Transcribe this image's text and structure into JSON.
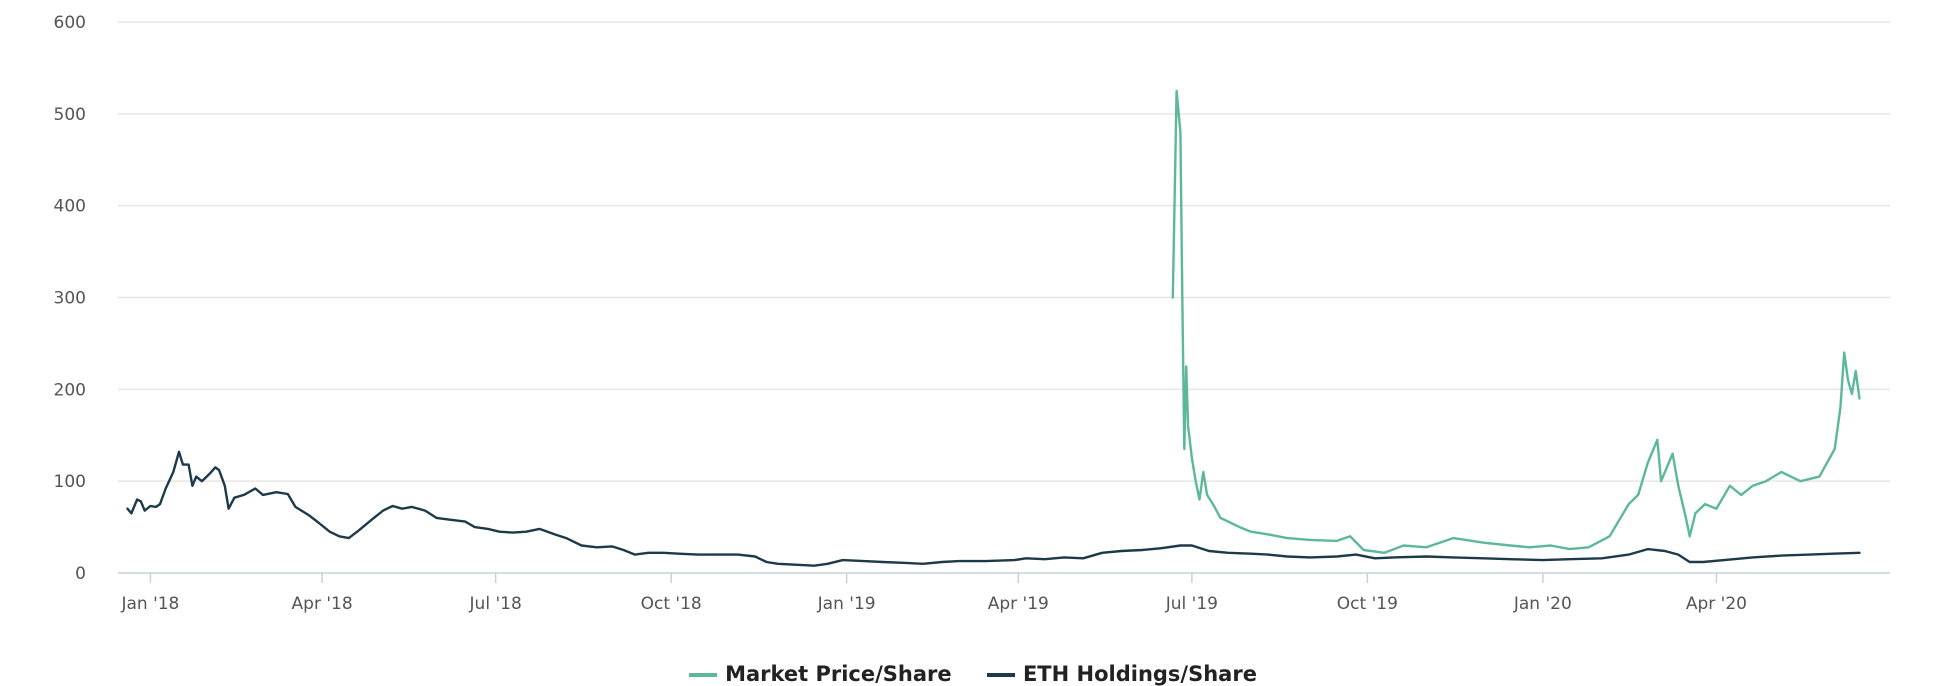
{
  "chart_data": {
    "type": "line",
    "title": "",
    "xlabel": "",
    "ylabel": "",
    "ylim": [
      0,
      600
    ],
    "xlim": [
      "2017-12-15",
      "2020-07-01"
    ],
    "grid": true,
    "legend_position": "bottom-center",
    "y_ticks": [
      "0",
      "100",
      "200",
      "300",
      "400",
      "500",
      "600"
    ],
    "x_ticks": [
      {
        "date": "2018-01-01",
        "label": "Jan '18"
      },
      {
        "date": "2018-04-01",
        "label": "Apr '18"
      },
      {
        "date": "2018-07-01",
        "label": "Jul '18"
      },
      {
        "date": "2018-10-01",
        "label": "Oct '18"
      },
      {
        "date": "2019-01-01",
        "label": "Jan '19"
      },
      {
        "date": "2019-04-01",
        "label": "Apr '19"
      },
      {
        "date": "2019-07-01",
        "label": "Jul '19"
      },
      {
        "date": "2019-10-01",
        "label": "Oct '19"
      },
      {
        "date": "2020-01-01",
        "label": "Jan '20"
      },
      {
        "date": "2020-04-01",
        "label": "Apr '20"
      }
    ],
    "series": [
      {
        "name": "Market Price/Share",
        "color": "#5bb89a",
        "points": [
          [
            "2019-06-21",
            300
          ],
          [
            "2019-06-23",
            525
          ],
          [
            "2019-06-25",
            480
          ],
          [
            "2019-06-26",
            300
          ],
          [
            "2019-06-27",
            135
          ],
          [
            "2019-06-28",
            225
          ],
          [
            "2019-06-29",
            160
          ],
          [
            "2019-07-01",
            125
          ],
          [
            "2019-07-03",
            100
          ],
          [
            "2019-07-05",
            80
          ],
          [
            "2019-07-07",
            110
          ],
          [
            "2019-07-09",
            85
          ],
          [
            "2019-07-12",
            75
          ],
          [
            "2019-07-16",
            60
          ],
          [
            "2019-07-21",
            55
          ],
          [
            "2019-07-26",
            50
          ],
          [
            "2019-08-01",
            45
          ],
          [
            "2019-08-10",
            42
          ],
          [
            "2019-08-20",
            38
          ],
          [
            "2019-09-01",
            36
          ],
          [
            "2019-09-15",
            35
          ],
          [
            "2019-09-22",
            40
          ],
          [
            "2019-09-29",
            25
          ],
          [
            "2019-10-10",
            22
          ],
          [
            "2019-10-20",
            30
          ],
          [
            "2019-11-01",
            28
          ],
          [
            "2019-11-15",
            38
          ],
          [
            "2019-12-01",
            33
          ],
          [
            "2019-12-15",
            30
          ],
          [
            "2019-12-25",
            28
          ],
          [
            "2020-01-05",
            30
          ],
          [
            "2020-01-15",
            26
          ],
          [
            "2020-01-25",
            28
          ],
          [
            "2020-02-05",
            40
          ],
          [
            "2020-02-15",
            75
          ],
          [
            "2020-02-20",
            85
          ],
          [
            "2020-02-25",
            120
          ],
          [
            "2020-03-01",
            145
          ],
          [
            "2020-03-03",
            100
          ],
          [
            "2020-03-06",
            115
          ],
          [
            "2020-03-09",
            130
          ],
          [
            "2020-03-12",
            95
          ],
          [
            "2020-03-16",
            60
          ],
          [
            "2020-03-18",
            40
          ],
          [
            "2020-03-21",
            65
          ],
          [
            "2020-03-26",
            75
          ],
          [
            "2020-04-01",
            70
          ],
          [
            "2020-04-08",
            95
          ],
          [
            "2020-04-14",
            85
          ],
          [
            "2020-04-20",
            95
          ],
          [
            "2020-04-27",
            100
          ],
          [
            "2020-05-05",
            110
          ],
          [
            "2020-05-15",
            100
          ],
          [
            "2020-05-25",
            105
          ],
          [
            "2020-06-02",
            135
          ],
          [
            "2020-06-05",
            180
          ],
          [
            "2020-06-07",
            240
          ],
          [
            "2020-06-09",
            210
          ],
          [
            "2020-06-11",
            195
          ],
          [
            "2020-06-13",
            220
          ],
          [
            "2020-06-15",
            190
          ]
        ]
      },
      {
        "name": "ETH Holdings/Share",
        "color": "#1c3a4a",
        "points": [
          [
            "2017-12-20",
            70
          ],
          [
            "2017-12-22",
            65
          ],
          [
            "2017-12-25",
            80
          ],
          [
            "2017-12-27",
            78
          ],
          [
            "2017-12-29",
            68
          ],
          [
            "2018-01-01",
            73
          ],
          [
            "2018-01-04",
            72
          ],
          [
            "2018-01-06",
            75
          ],
          [
            "2018-01-09",
            92
          ],
          [
            "2018-01-13",
            110
          ],
          [
            "2018-01-16",
            132
          ],
          [
            "2018-01-18",
            118
          ],
          [
            "2018-01-21",
            118
          ],
          [
            "2018-01-23",
            95
          ],
          [
            "2018-01-25",
            105
          ],
          [
            "2018-01-28",
            100
          ],
          [
            "2018-02-01",
            108
          ],
          [
            "2018-02-04",
            115
          ],
          [
            "2018-02-06",
            112
          ],
          [
            "2018-02-09",
            95
          ],
          [
            "2018-02-11",
            70
          ],
          [
            "2018-02-14",
            82
          ],
          [
            "2018-02-19",
            85
          ],
          [
            "2018-02-25",
            92
          ],
          [
            "2018-03-01",
            85
          ],
          [
            "2018-03-08",
            88
          ],
          [
            "2018-03-14",
            86
          ],
          [
            "2018-03-18",
            72
          ],
          [
            "2018-03-25",
            63
          ],
          [
            "2018-03-30",
            55
          ],
          [
            "2018-04-05",
            45
          ],
          [
            "2018-04-10",
            40
          ],
          [
            "2018-04-15",
            38
          ],
          [
            "2018-04-20",
            46
          ],
          [
            "2018-04-27",
            58
          ],
          [
            "2018-05-03",
            68
          ],
          [
            "2018-05-08",
            73
          ],
          [
            "2018-05-13",
            70
          ],
          [
            "2018-05-18",
            72
          ],
          [
            "2018-05-25",
            68
          ],
          [
            "2018-05-31",
            60
          ],
          [
            "2018-06-07",
            58
          ],
          [
            "2018-06-15",
            56
          ],
          [
            "2018-06-20",
            50
          ],
          [
            "2018-06-27",
            48
          ],
          [
            "2018-07-03",
            45
          ],
          [
            "2018-07-10",
            44
          ],
          [
            "2018-07-17",
            45
          ],
          [
            "2018-07-24",
            48
          ],
          [
            "2018-08-01",
            42
          ],
          [
            "2018-08-07",
            38
          ],
          [
            "2018-08-15",
            30
          ],
          [
            "2018-08-23",
            28
          ],
          [
            "2018-08-31",
            29
          ],
          [
            "2018-09-06",
            25
          ],
          [
            "2018-09-12",
            20
          ],
          [
            "2018-09-19",
            22
          ],
          [
            "2018-09-27",
            22
          ],
          [
            "2018-10-05",
            21
          ],
          [
            "2018-10-15",
            20
          ],
          [
            "2018-10-25",
            20
          ],
          [
            "2018-11-05",
            20
          ],
          [
            "2018-11-14",
            18
          ],
          [
            "2018-11-20",
            12
          ],
          [
            "2018-11-26",
            10
          ],
          [
            "2018-12-05",
            9
          ],
          [
            "2018-12-15",
            8
          ],
          [
            "2018-12-22",
            10
          ],
          [
            "2018-12-30",
            14
          ],
          [
            "2019-01-10",
            13
          ],
          [
            "2019-01-20",
            12
          ],
          [
            "2019-02-01",
            11
          ],
          [
            "2019-02-10",
            10
          ],
          [
            "2019-02-20",
            12
          ],
          [
            "2019-03-01",
            13
          ],
          [
            "2019-03-15",
            13
          ],
          [
            "2019-03-30",
            14
          ],
          [
            "2019-04-05",
            16
          ],
          [
            "2019-04-15",
            15
          ],
          [
            "2019-04-25",
            17
          ],
          [
            "2019-05-05",
            16
          ],
          [
            "2019-05-15",
            22
          ],
          [
            "2019-05-25",
            24
          ],
          [
            "2019-06-05",
            25
          ],
          [
            "2019-06-15",
            27
          ],
          [
            "2019-06-25",
            30
          ],
          [
            "2019-07-01",
            30
          ],
          [
            "2019-07-10",
            24
          ],
          [
            "2019-07-20",
            22
          ],
          [
            "2019-08-01",
            21
          ],
          [
            "2019-08-10",
            20
          ],
          [
            "2019-08-20",
            18
          ],
          [
            "2019-09-01",
            17
          ],
          [
            "2019-09-15",
            18
          ],
          [
            "2019-09-25",
            20
          ],
          [
            "2019-10-05",
            16
          ],
          [
            "2019-10-15",
            17
          ],
          [
            "2019-11-01",
            18
          ],
          [
            "2019-11-15",
            17
          ],
          [
            "2019-12-01",
            16
          ],
          [
            "2019-12-15",
            15
          ],
          [
            "2020-01-01",
            14
          ],
          [
            "2020-01-15",
            15
          ],
          [
            "2020-02-01",
            16
          ],
          [
            "2020-02-15",
            20
          ],
          [
            "2020-02-25",
            26
          ],
          [
            "2020-03-05",
            24
          ],
          [
            "2020-03-12",
            20
          ],
          [
            "2020-03-18",
            12
          ],
          [
            "2020-03-25",
            12
          ],
          [
            "2020-04-05",
            14
          ],
          [
            "2020-04-20",
            17
          ],
          [
            "2020-05-05",
            19
          ],
          [
            "2020-05-20",
            20
          ],
          [
            "2020-06-01",
            21
          ],
          [
            "2020-06-15",
            22
          ]
        ]
      }
    ]
  },
  "legend": {
    "items": [
      {
        "label": "Market Price/Share",
        "color": "#5bb89a"
      },
      {
        "label": "ETH Holdings/Share",
        "color": "#1c3a4a"
      }
    ]
  }
}
